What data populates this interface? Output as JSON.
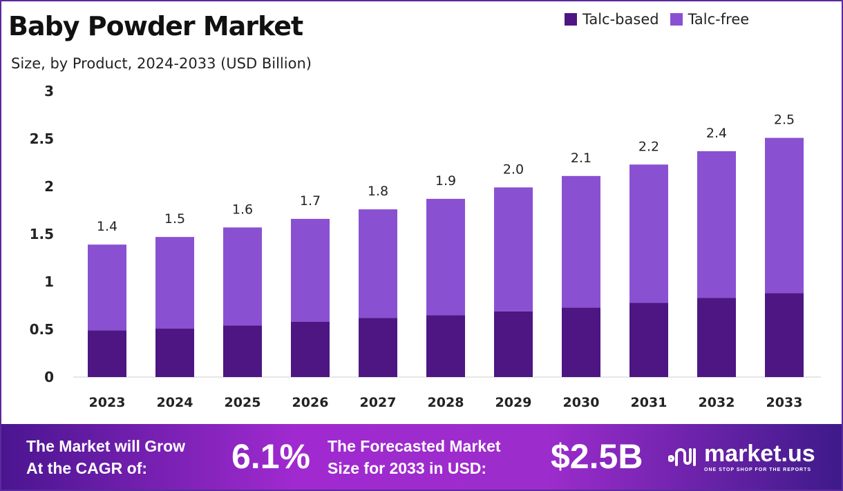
{
  "chart_data": {
    "type": "bar",
    "stacked": true,
    "title": "Baby Powder Market",
    "subtitle": "Size, by Product, 2024-2033 (USD Billion)",
    "categories": [
      "2023",
      "2024",
      "2025",
      "2026",
      "2027",
      "2028",
      "2029",
      "2030",
      "2031",
      "2032",
      "2033"
    ],
    "series": [
      {
        "name": "Talc-based",
        "color": "#4d1683",
        "values": [
          0.49,
          0.51,
          0.54,
          0.58,
          0.62,
          0.65,
          0.69,
          0.73,
          0.78,
          0.83,
          0.88
        ]
      },
      {
        "name": "Talc-free",
        "color": "#8a50d2",
        "values": [
          0.9,
          0.96,
          1.03,
          1.08,
          1.14,
          1.22,
          1.3,
          1.38,
          1.45,
          1.54,
          1.63
        ]
      }
    ],
    "totals_labels": [
      "1.4",
      "1.5",
      "1.6",
      "1.7",
      "1.8",
      "1.9",
      "2.0",
      "2.1",
      "2.2",
      "2.4",
      "2.5"
    ],
    "ylim": [
      0,
      3
    ],
    "yticks": [
      "0",
      "0.5",
      "1",
      "1.5",
      "2",
      "2.5",
      "3"
    ],
    "grid": false,
    "legend": "top-right"
  },
  "footer": {
    "cagr_text_1": "The Market will Grow",
    "cagr_text_2": "At the CAGR of:",
    "cagr_value": "6.1%",
    "forecast_text_1": "The Forecasted Market",
    "forecast_text_2": "Size for 2033 in USD:",
    "forecast_value": "$2.5B",
    "logo_text": "market.us",
    "logo_tagline": "ONE STOP SHOP FOR THE REPORTS"
  }
}
